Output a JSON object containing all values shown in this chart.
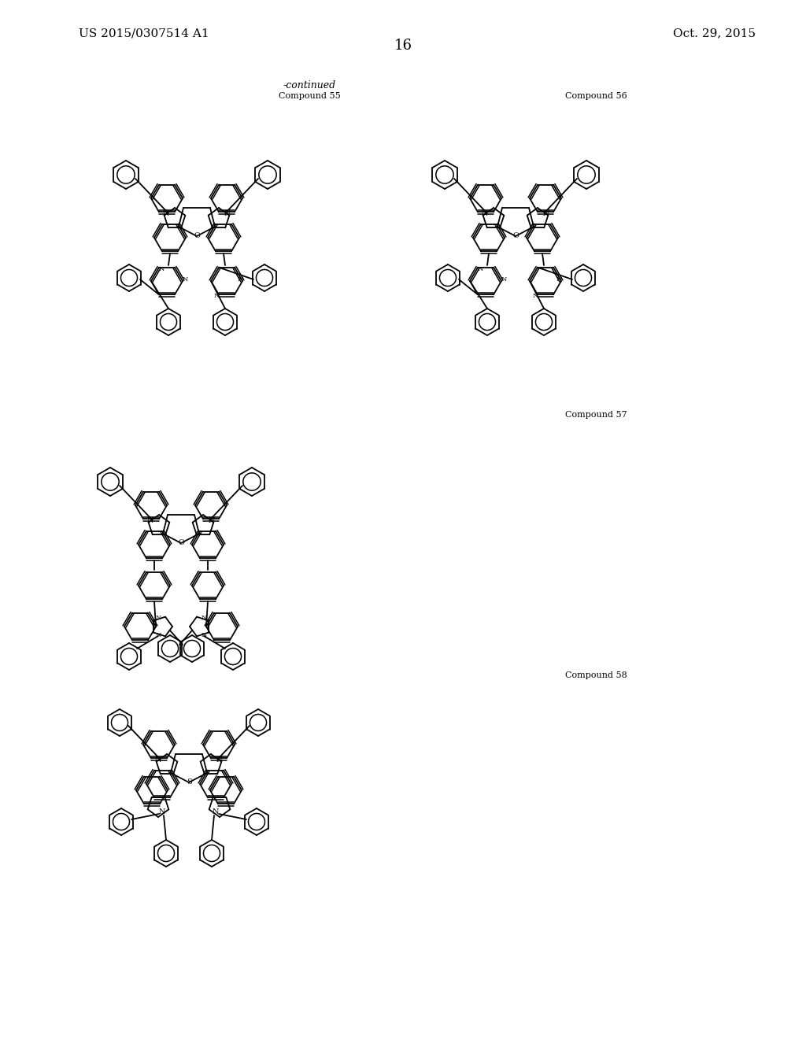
{
  "bg": "#ffffff",
  "header_left": "US 2015/0307514 A1",
  "header_right": "Oct. 29, 2015",
  "page_num": "16",
  "continued": "-continued",
  "label55": "Compound 55",
  "label56": "Compound 56",
  "label57": "Compound 57",
  "label58": "Compound 58"
}
